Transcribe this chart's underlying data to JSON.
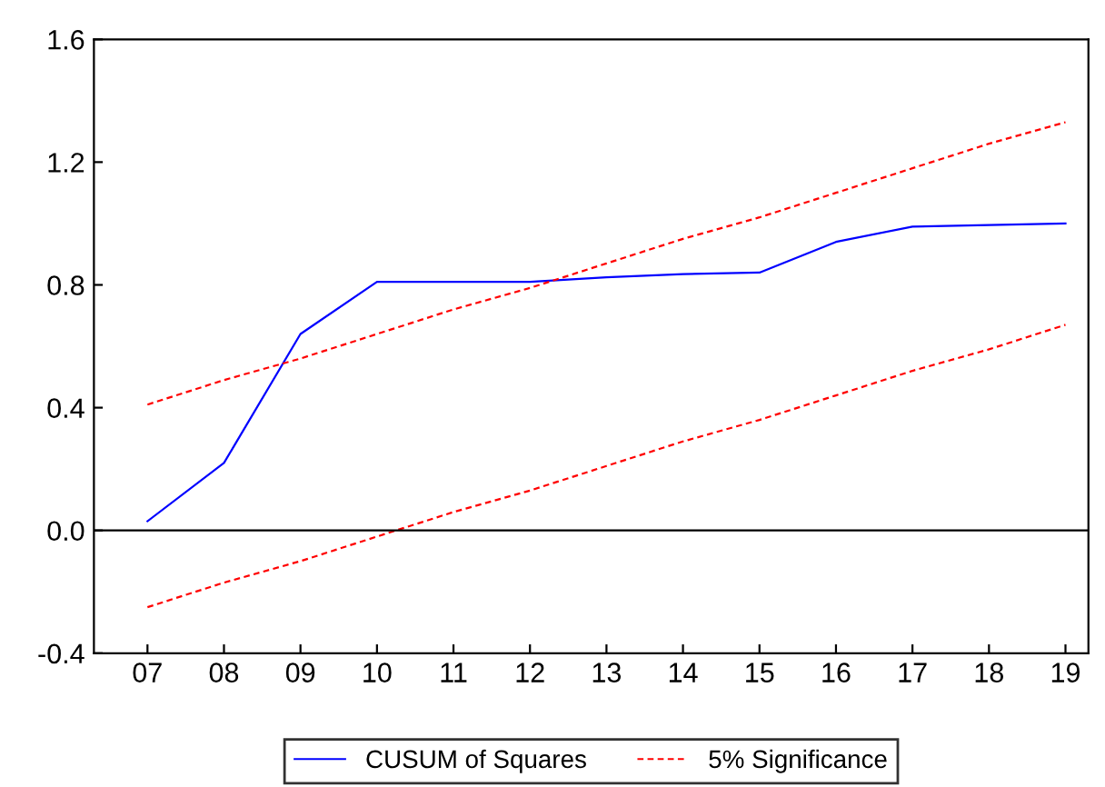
{
  "chart_data": {
    "type": "line",
    "categories": [
      "07",
      "08",
      "09",
      "10",
      "11",
      "12",
      "13",
      "14",
      "15",
      "16",
      "17",
      "18",
      "19"
    ],
    "series": [
      {
        "name": "CUSUM of Squares",
        "color": "#0000ff",
        "line_style": "solid",
        "values": [
          0.03,
          0.22,
          0.64,
          0.81,
          0.81,
          0.81,
          0.825,
          0.835,
          0.84,
          0.94,
          0.99,
          0.995,
          1.0
        ]
      },
      {
        "name": "5% Significance",
        "color": "#ff0000",
        "line_style": "dashed",
        "values": [
          0.41,
          0.49,
          0.56,
          0.64,
          0.72,
          0.79,
          0.87,
          0.95,
          1.02,
          1.1,
          1.18,
          1.26,
          1.33
        ]
      },
      {
        "color": "#ff0000",
        "line_style": "dashed",
        "values": [
          -0.25,
          -0.17,
          -0.1,
          -0.02,
          0.06,
          0.13,
          0.21,
          0.29,
          0.36,
          0.44,
          0.52,
          0.59,
          0.67
        ]
      }
    ],
    "ylim": [
      -0.4,
      1.6
    ],
    "yticks": [
      -0.4,
      {
        "value": 0,
        "label": "0.0"
      },
      0.4,
      0.8,
      1.2,
      1.6
    ],
    "ref_lines": [
      {
        "axis": "y",
        "value": 0,
        "color": "#000000"
      }
    ],
    "legend": "bottom",
    "grid": false
  }
}
